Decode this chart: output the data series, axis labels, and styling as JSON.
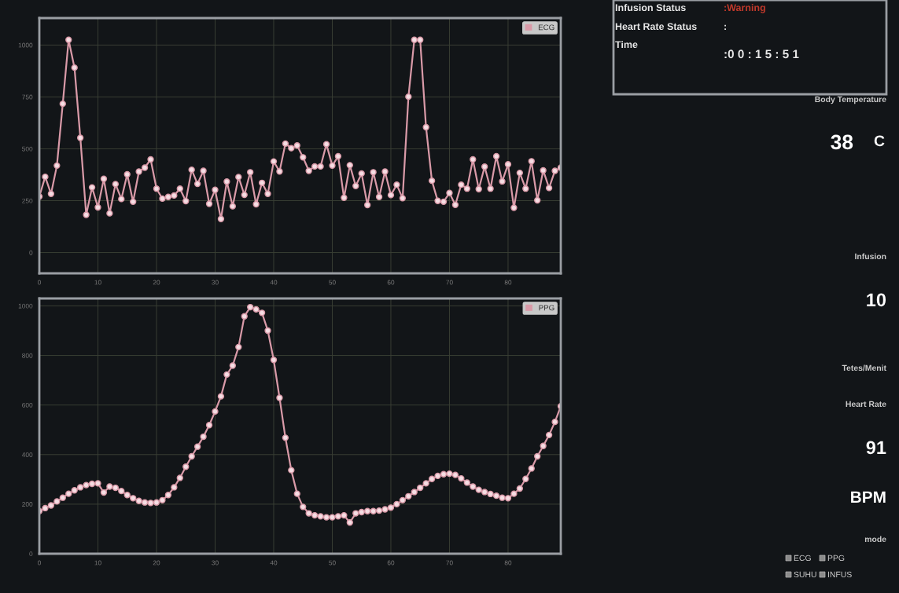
{
  "chart_data": [
    {
      "type": "line",
      "x": [
        0,
        1,
        2,
        3,
        4,
        5,
        6,
        7,
        8,
        9,
        10,
        11,
        12,
        13,
        14,
        15,
        16,
        17,
        18,
        19,
        20,
        21,
        22,
        23,
        24,
        25,
        26,
        27,
        28,
        29,
        30,
        31,
        32,
        33,
        34,
        35,
        36,
        37,
        38,
        39,
        40,
        41,
        42,
        43,
        44,
        45,
        46,
        47,
        48,
        49,
        50,
        51,
        52,
        53,
        54,
        55,
        56,
        57,
        58,
        59,
        60,
        61,
        62,
        63,
        64,
        65,
        66,
        67,
        68,
        69,
        70,
        71,
        72,
        73,
        74,
        75,
        76,
        77,
        78,
        79,
        80,
        81,
        82,
        83,
        84,
        85,
        86,
        87,
        88,
        89
      ],
      "series": [
        {
          "name": "ECG",
          "color": "#d99aa8",
          "values": [
            270,
            365,
            283,
            419,
            717,
            1025,
            891,
            553,
            182,
            314,
            218,
            355,
            189,
            330,
            258,
            377,
            245,
            390,
            409,
            449,
            308,
            260,
            268,
            275,
            308,
            248,
            399,
            331,
            394,
            235,
            302,
            162,
            342,
            223,
            364,
            278,
            387,
            233,
            336,
            283,
            439,
            391,
            525,
            503,
            516,
            459,
            394,
            415,
            415,
            522,
            419,
            464,
            264,
            421,
            321,
            381,
            229,
            387,
            268,
            390,
            277,
            327,
            262,
            751,
            1025,
            1025,
            604,
            346,
            249,
            245,
            287,
            230,
            327,
            308,
            449,
            306,
            414,
            308,
            464,
            343,
            425,
            216,
            384,
            308,
            440,
            252,
            396,
            311,
            394,
            409
          ]
        }
      ],
      "xlim": [
        0,
        89
      ],
      "xticks": [
        0,
        10,
        20,
        30,
        40,
        50,
        60,
        70,
        80
      ],
      "ylim": [
        -100,
        1130
      ],
      "yticks": [
        0,
        250,
        500,
        750,
        1000
      ],
      "grid": true,
      "legend": "top right",
      "marker": "circle",
      "line_style": "solid"
    },
    {
      "type": "line",
      "x": [
        0,
        1,
        2,
        3,
        4,
        5,
        6,
        7,
        8,
        9,
        10,
        11,
        12,
        13,
        14,
        15,
        16,
        17,
        18,
        19,
        20,
        21,
        22,
        23,
        24,
        25,
        26,
        27,
        28,
        29,
        30,
        31,
        32,
        33,
        34,
        35,
        36,
        37,
        38,
        39,
        40,
        41,
        42,
        43,
        44,
        45,
        46,
        47,
        48,
        49,
        50,
        51,
        52,
        53,
        54,
        55,
        56,
        57,
        58,
        59,
        60,
        61,
        62,
        63,
        64,
        65,
        66,
        67,
        68,
        69,
        70,
        71,
        72,
        73,
        74,
        75,
        76,
        77,
        78,
        79,
        80,
        81,
        82,
        83,
        84,
        85,
        86,
        87,
        88,
        89
      ],
      "series": [
        {
          "name": "PPG",
          "color": "#d99aa8",
          "values": [
            172,
            184,
            195,
            211,
            226,
            242,
            256,
            268,
            277,
            282,
            284,
            247,
            271,
            266,
            253,
            237,
            224,
            213,
            207,
            205,
            207,
            216,
            237,
            268,
            306,
            351,
            393,
            432,
            472,
            519,
            574,
            635,
            723,
            759,
            834,
            958,
            995,
            986,
            972,
            900,
            782,
            629,
            468,
            337,
            242,
            189,
            163,
            155,
            151,
            147,
            147,
            151,
            155,
            126,
            163,
            168,
            172,
            172,
            174,
            179,
            186,
            200,
            216,
            232,
            249,
            266,
            284,
            302,
            314,
            321,
            323,
            318,
            304,
            287,
            271,
            258,
            249,
            241,
            234,
            226,
            224,
            242,
            263,
            302,
            344,
            393,
            435,
            479,
            532,
            595
          ]
        }
      ],
      "xlim": [
        0,
        89
      ],
      "xticks": [
        0,
        10,
        20,
        30,
        40,
        50,
        60,
        70,
        80
      ],
      "ylim": [
        0,
        1030
      ],
      "yticks": [
        0,
        200,
        400,
        600,
        800,
        1000
      ],
      "grid": true,
      "legend": "top right",
      "marker": "circle",
      "line_style": "solid"
    },
    {
      "type": "other",
      "annotations": [
        "Infusion Status",
        ":Warning",
        "Heart Rate Status",
        ":",
        "Time",
        ":0 0 : 1 5 : 5 1",
        "Body Temperature",
        "38",
        "C",
        "Infusion",
        "10",
        "Tetes/Menit",
        "Heart Rate",
        "91",
        "BPM",
        "mode",
        "ECG",
        "PPG",
        "SUHU",
        "INFUS"
      ]
    }
  ]
}
